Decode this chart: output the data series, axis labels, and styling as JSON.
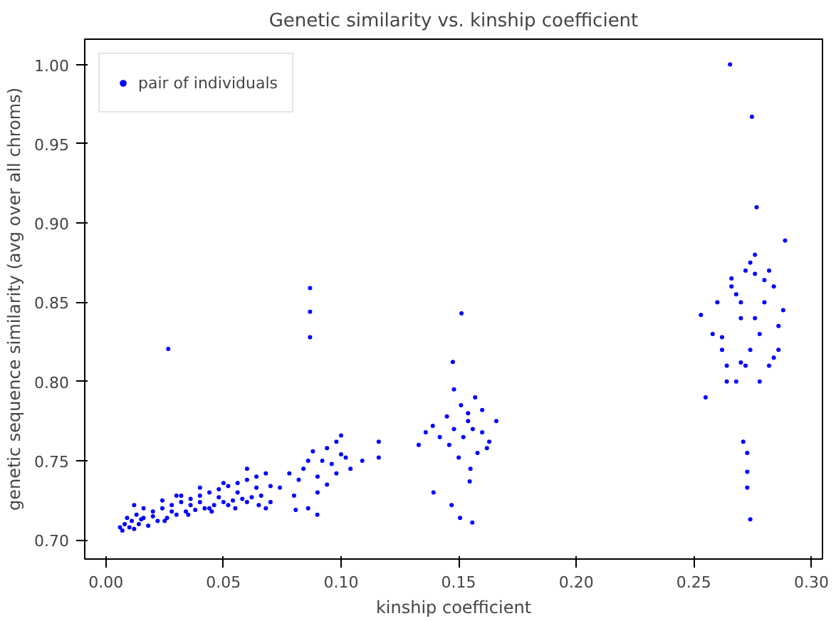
{
  "chart_data": {
    "type": "scatter",
    "title": "Genetic similarity vs. kinship coefficient",
    "xlabel": "kinship coefficient",
    "ylabel": "genetic sequence similarity (avg over all chroms)",
    "xlim": [
      -0.009,
      0.3047
    ],
    "ylim": [
      0.688,
      1.016
    ],
    "xticks": [
      {
        "value": 0,
        "label": "0.00"
      },
      {
        "value": 0.05,
        "label": "0.05"
      },
      {
        "value": 0.1,
        "label": "0.10"
      },
      {
        "value": 0.15,
        "label": "0.15"
      },
      {
        "value": 0.2,
        "label": "0.20"
      },
      {
        "value": 0.25,
        "label": "0.25"
      },
      {
        "value": 0.3,
        "label": "0.30"
      }
    ],
    "yticks": [
      {
        "value": 0.7,
        "label": "0.70"
      },
      {
        "value": 0.75,
        "label": "0.75"
      },
      {
        "value": 0.8,
        "label": "0.80"
      },
      {
        "value": 0.85,
        "label": "0.85"
      },
      {
        "value": 0.9,
        "label": "0.90"
      },
      {
        "value": 0.95,
        "label": "0.95"
      },
      {
        "value": 1.0,
        "label": "1.00"
      }
    ],
    "grid": false,
    "legend": "top left",
    "marker": "circle",
    "series": [
      {
        "name": "pair of individuals",
        "color": "#0000ff",
        "x": [
          0.006,
          0.007,
          0.008,
          0.009,
          0.01,
          0.011,
          0.012,
          0.013,
          0.014,
          0.016,
          0.018,
          0.02,
          0.022,
          0.024,
          0.026,
          0.028,
          0.03,
          0.032,
          0.034,
          0.036,
          0.038,
          0.04,
          0.042,
          0.044,
          0.046,
          0.048,
          0.05,
          0.052,
          0.054,
          0.056,
          0.058,
          0.06,
          0.062,
          0.064,
          0.066,
          0.068,
          0.07,
          0.012,
          0.016,
          0.02,
          0.024,
          0.028,
          0.032,
          0.036,
          0.04,
          0.044,
          0.048,
          0.052,
          0.056,
          0.06,
          0.064,
          0.068,
          0.07,
          0.015,
          0.025,
          0.035,
          0.045,
          0.055,
          0.065,
          0.03,
          0.04,
          0.05,
          0.06,
          0.0265,
          0.074,
          0.078,
          0.08,
          0.082,
          0.084,
          0.086,
          0.088,
          0.09,
          0.092,
          0.094,
          0.096,
          0.098,
          0.1,
          0.086,
          0.09,
          0.094,
          0.098,
          0.1,
          0.102,
          0.104,
          0.109,
          0.116,
          0.116,
          0.0868,
          0.0868,
          0.0868,
          0.0899,
          0.0807,
          0.133,
          0.136,
          0.139,
          0.142,
          0.145,
          0.148,
          0.151,
          0.154,
          0.157,
          0.16,
          0.163,
          0.166,
          0.146,
          0.15,
          0.154,
          0.158,
          0.162,
          0.148,
          0.152,
          0.156,
          0.16,
          0.155,
          0.1512,
          0.1475,
          0.1393,
          0.147,
          0.1506,
          0.1558,
          0.1547,
          0.253,
          0.255,
          0.258,
          0.26,
          0.262,
          0.264,
          0.266,
          0.268,
          0.27,
          0.272,
          0.274,
          0.276,
          0.278,
          0.28,
          0.282,
          0.284,
          0.286,
          0.288,
          0.262,
          0.266,
          0.27,
          0.274,
          0.278,
          0.282,
          0.286,
          0.264,
          0.268,
          0.272,
          0.276,
          0.28,
          0.284,
          0.27,
          0.276,
          0.2654,
          0.2747,
          0.2767,
          0.2888,
          0.271,
          0.2727,
          0.2727,
          0.2727,
          0.274
        ],
        "values": [
          0.708,
          0.706,
          0.71,
          0.714,
          0.708,
          0.712,
          0.707,
          0.716,
          0.71,
          0.714,
          0.709,
          0.718,
          0.712,
          0.72,
          0.714,
          0.722,
          0.716,
          0.724,
          0.718,
          0.726,
          0.719,
          0.728,
          0.72,
          0.73,
          0.722,
          0.732,
          0.724,
          0.734,
          0.725,
          0.736,
          0.726,
          0.738,
          0.727,
          0.74,
          0.728,
          0.742,
          0.724,
          0.722,
          0.72,
          0.715,
          0.725,
          0.718,
          0.728,
          0.722,
          0.724,
          0.72,
          0.727,
          0.722,
          0.73,
          0.724,
          0.733,
          0.72,
          0.734,
          0.713,
          0.712,
          0.716,
          0.718,
          0.72,
          0.722,
          0.728,
          0.733,
          0.736,
          0.745,
          0.8206,
          0.733,
          0.742,
          0.728,
          0.738,
          0.745,
          0.75,
          0.756,
          0.74,
          0.75,
          0.758,
          0.748,
          0.762,
          0.754,
          0.72,
          0.73,
          0.735,
          0.742,
          0.766,
          0.752,
          0.745,
          0.75,
          0.762,
          0.752,
          0.859,
          0.844,
          0.828,
          0.716,
          0.719,
          0.76,
          0.768,
          0.772,
          0.765,
          0.778,
          0.77,
          0.785,
          0.775,
          0.79,
          0.768,
          0.762,
          0.775,
          0.76,
          0.752,
          0.78,
          0.755,
          0.758,
          0.795,
          0.765,
          0.77,
          0.782,
          0.745,
          0.843,
          0.8124,
          0.73,
          0.722,
          0.714,
          0.711,
          0.737,
          0.842,
          0.79,
          0.83,
          0.85,
          0.82,
          0.81,
          0.865,
          0.8,
          0.84,
          0.87,
          0.82,
          0.88,
          0.83,
          0.85,
          0.81,
          0.86,
          0.82,
          0.845,
          0.828,
          0.86,
          0.812,
          0.875,
          0.8,
          0.87,
          0.835,
          0.8,
          0.855,
          0.81,
          0.84,
          0.864,
          0.815,
          0.85,
          0.868,
          1.0,
          0.967,
          0.91,
          0.889,
          0.762,
          0.755,
          0.743,
          0.733,
          0.713
        ]
      }
    ]
  }
}
